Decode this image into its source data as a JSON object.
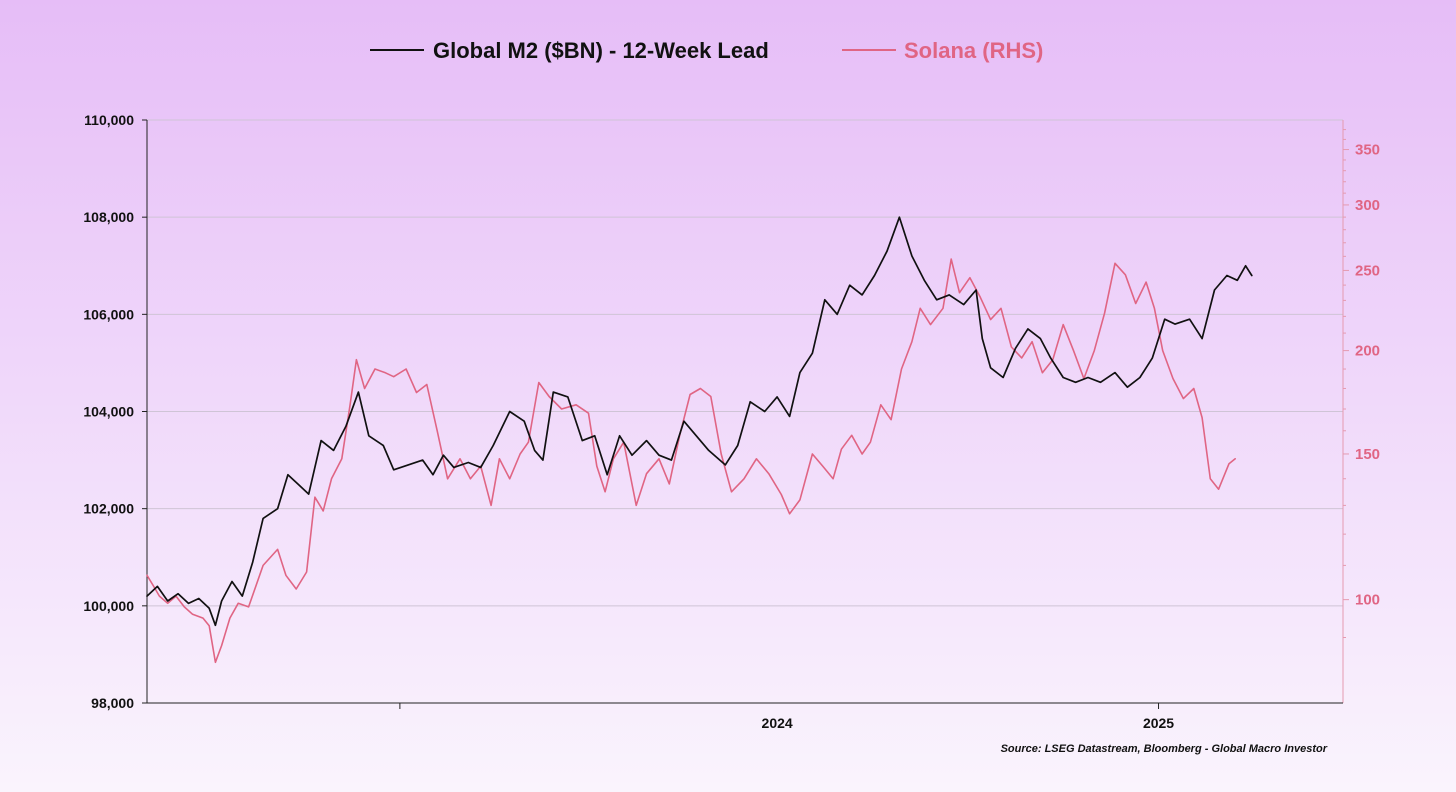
{
  "chart_data": {
    "type": "line",
    "title": "",
    "legend": {
      "placement": "top-center",
      "entries": [
        "Global M2 ($BN) - 12-Week Lead",
        "Solana (RHS)"
      ]
    },
    "source": "Source: LSEG Datastream, Bloomberg - Global Macro Investor",
    "x_axis": {
      "type": "date",
      "range": [
        "2023-09-01",
        "2025-03-31"
      ],
      "tick_labels": [
        "2024",
        "2025"
      ],
      "tick_dates": [
        "2024-01-01",
        "2025-01-01"
      ],
      "label_dates": [
        "2024-07-01",
        "2025-01-01"
      ]
    },
    "y_axis_left": {
      "range": [
        98000,
        110000
      ],
      "ticks": [
        98000,
        100000,
        102000,
        104000,
        106000,
        108000,
        110000
      ],
      "tick_labels": [
        "98,000",
        "100,000",
        "102,000",
        "104,000",
        "106,000",
        "108,000",
        "110,000"
      ],
      "grid": true
    },
    "y_axis_right": {
      "scale": "log",
      "range": [
        75,
        380
      ],
      "ticks": [
        100,
        150,
        200,
        250,
        300,
        350
      ],
      "tick_labels": [
        "100",
        "150",
        "200",
        "250",
        "300",
        "350"
      ]
    },
    "colors": {
      "m2": "#111111",
      "solana": "#e06584",
      "grid": "#cfc4d6"
    },
    "series": [
      {
        "name": "Global M2 ($BN) - 12-Week Lead",
        "axis": "left",
        "color": "#111111",
        "points": [
          [
            "2023-09-01",
            100200
          ],
          [
            "2023-09-06",
            100400
          ],
          [
            "2023-09-11",
            100100
          ],
          [
            "2023-09-16",
            100250
          ],
          [
            "2023-09-21",
            100050
          ],
          [
            "2023-09-26",
            100150
          ],
          [
            "2023-10-01",
            99950
          ],
          [
            "2023-10-04",
            99600
          ],
          [
            "2023-10-07",
            100100
          ],
          [
            "2023-10-12",
            100500
          ],
          [
            "2023-10-17",
            100200
          ],
          [
            "2023-10-22",
            100900
          ],
          [
            "2023-10-27",
            101800
          ],
          [
            "2023-11-03",
            102000
          ],
          [
            "2023-11-08",
            102700
          ],
          [
            "2023-11-13",
            102500
          ],
          [
            "2023-11-18",
            102300
          ],
          [
            "2023-11-24",
            103400
          ],
          [
            "2023-11-30",
            103200
          ],
          [
            "2023-12-06",
            103700
          ],
          [
            "2023-12-12",
            104400
          ],
          [
            "2023-12-17",
            103500
          ],
          [
            "2023-12-24",
            103300
          ],
          [
            "2023-12-29",
            102800
          ],
          [
            "2024-01-05",
            102900
          ],
          [
            "2024-01-12",
            103000
          ],
          [
            "2024-01-17",
            102700
          ],
          [
            "2024-01-22",
            103100
          ],
          [
            "2024-01-27",
            102850
          ],
          [
            "2024-02-03",
            102950
          ],
          [
            "2024-02-09",
            102850
          ],
          [
            "2024-02-15",
            103300
          ],
          [
            "2024-02-23",
            104000
          ],
          [
            "2024-03-01",
            103800
          ],
          [
            "2024-03-06",
            103200
          ],
          [
            "2024-03-10",
            103000
          ],
          [
            "2024-03-15",
            104400
          ],
          [
            "2024-03-22",
            104300
          ],
          [
            "2024-03-29",
            103400
          ],
          [
            "2024-04-04",
            103500
          ],
          [
            "2024-04-10",
            102700
          ],
          [
            "2024-04-16",
            103500
          ],
          [
            "2024-04-22",
            103100
          ],
          [
            "2024-04-29",
            103400
          ],
          [
            "2024-05-05",
            103100
          ],
          [
            "2024-05-11",
            103000
          ],
          [
            "2024-05-17",
            103800
          ],
          [
            "2024-05-23",
            103500
          ],
          [
            "2024-05-29",
            103200
          ],
          [
            "2024-06-06",
            102900
          ],
          [
            "2024-06-12",
            103300
          ],
          [
            "2024-06-18",
            104200
          ],
          [
            "2024-06-25",
            104000
          ],
          [
            "2024-07-01",
            104300
          ],
          [
            "2024-07-07",
            103900
          ],
          [
            "2024-07-12",
            104800
          ],
          [
            "2024-07-18",
            105200
          ],
          [
            "2024-07-24",
            106300
          ],
          [
            "2024-07-30",
            106000
          ],
          [
            "2024-08-05",
            106600
          ],
          [
            "2024-08-11",
            106400
          ],
          [
            "2024-08-17",
            106800
          ],
          [
            "2024-08-23",
            107300
          ],
          [
            "2024-08-29",
            108000
          ],
          [
            "2024-09-04",
            107200
          ],
          [
            "2024-09-10",
            106700
          ],
          [
            "2024-09-16",
            106300
          ],
          [
            "2024-09-22",
            106400
          ],
          [
            "2024-09-29",
            106200
          ],
          [
            "2024-10-05",
            106500
          ],
          [
            "2024-10-08",
            105500
          ],
          [
            "2024-10-12",
            104900
          ],
          [
            "2024-10-18",
            104700
          ],
          [
            "2024-10-24",
            105300
          ],
          [
            "2024-10-30",
            105700
          ],
          [
            "2024-11-05",
            105500
          ],
          [
            "2024-11-10",
            105100
          ],
          [
            "2024-11-16",
            104700
          ],
          [
            "2024-11-22",
            104600
          ],
          [
            "2024-11-28",
            104700
          ],
          [
            "2024-12-04",
            104600
          ],
          [
            "2024-12-11",
            104800
          ],
          [
            "2024-12-17",
            104500
          ],
          [
            "2024-12-23",
            104700
          ],
          [
            "2024-12-29",
            105100
          ],
          [
            "2025-01-04",
            105900
          ],
          [
            "2025-01-09",
            105800
          ],
          [
            "2025-01-16",
            105900
          ],
          [
            "2025-01-22",
            105500
          ],
          [
            "2025-01-28",
            106500
          ],
          [
            "2025-02-03",
            106800
          ],
          [
            "2025-02-08",
            106700
          ],
          [
            "2025-02-12",
            107000
          ],
          [
            "2025-02-15",
            106800
          ]
        ]
      },
      {
        "name": "Solana (RHS)",
        "axis": "right",
        "color": "#e06584",
        "points": [
          [
            "2023-09-01",
            107
          ],
          [
            "2023-09-04",
            104
          ],
          [
            "2023-09-07",
            101
          ],
          [
            "2023-09-11",
            99
          ],
          [
            "2023-09-15",
            101
          ],
          [
            "2023-09-19",
            98
          ],
          [
            "2023-09-23",
            96
          ],
          [
            "2023-09-28",
            95
          ],
          [
            "2023-10-01",
            93
          ],
          [
            "2023-10-04",
            84
          ],
          [
            "2023-10-07",
            88
          ],
          [
            "2023-10-11",
            95
          ],
          [
            "2023-10-15",
            99
          ],
          [
            "2023-10-20",
            98
          ],
          [
            "2023-10-27",
            110
          ],
          [
            "2023-11-03",
            115
          ],
          [
            "2023-11-07",
            107
          ],
          [
            "2023-11-12",
            103
          ],
          [
            "2023-11-17",
            108
          ],
          [
            "2023-11-21",
            133
          ],
          [
            "2023-11-25",
            128
          ],
          [
            "2023-11-29",
            140
          ],
          [
            "2023-12-04",
            148
          ],
          [
            "2023-12-08",
            172
          ],
          [
            "2023-12-11",
            195
          ],
          [
            "2023-12-15",
            180
          ],
          [
            "2023-12-20",
            190
          ],
          [
            "2023-12-25",
            188
          ],
          [
            "2023-12-29",
            186
          ],
          [
            "2024-01-04",
            190
          ],
          [
            "2024-01-09",
            178
          ],
          [
            "2024-01-14",
            182
          ],
          [
            "2024-01-19",
            160
          ],
          [
            "2024-01-24",
            140
          ],
          [
            "2024-01-30",
            148
          ],
          [
            "2024-02-04",
            140
          ],
          [
            "2024-02-09",
            145
          ],
          [
            "2024-02-14",
            130
          ],
          [
            "2024-02-18",
            148
          ],
          [
            "2024-02-23",
            140
          ],
          [
            "2024-02-28",
            150
          ],
          [
            "2024-03-03",
            155
          ],
          [
            "2024-03-08",
            183
          ],
          [
            "2024-03-13",
            176
          ],
          [
            "2024-03-19",
            170
          ],
          [
            "2024-03-26",
            172
          ],
          [
            "2024-04-01",
            168
          ],
          [
            "2024-04-05",
            145
          ],
          [
            "2024-04-09",
            135
          ],
          [
            "2024-04-13",
            148
          ],
          [
            "2024-04-18",
            155
          ],
          [
            "2024-04-24",
            130
          ],
          [
            "2024-04-29",
            142
          ],
          [
            "2024-05-05",
            148
          ],
          [
            "2024-05-10",
            138
          ],
          [
            "2024-05-15",
            158
          ],
          [
            "2024-05-20",
            177
          ],
          [
            "2024-05-25",
            180
          ],
          [
            "2024-05-30",
            176
          ],
          [
            "2024-06-04",
            150
          ],
          [
            "2024-06-09",
            135
          ],
          [
            "2024-06-15",
            140
          ],
          [
            "2024-06-21",
            148
          ],
          [
            "2024-06-27",
            142
          ],
          [
            "2024-07-03",
            134
          ],
          [
            "2024-07-07",
            127
          ],
          [
            "2024-07-12",
            132
          ],
          [
            "2024-07-18",
            150
          ],
          [
            "2024-07-23",
            145
          ],
          [
            "2024-07-28",
            140
          ],
          [
            "2024-08-01",
            152
          ],
          [
            "2024-08-06",
            158
          ],
          [
            "2024-08-11",
            150
          ],
          [
            "2024-08-15",
            155
          ],
          [
            "2024-08-20",
            172
          ],
          [
            "2024-08-25",
            165
          ],
          [
            "2024-08-30",
            190
          ],
          [
            "2024-09-04",
            205
          ],
          [
            "2024-09-08",
            225
          ],
          [
            "2024-09-13",
            215
          ],
          [
            "2024-09-19",
            225
          ],
          [
            "2024-09-23",
            258
          ],
          [
            "2024-09-27",
            235
          ],
          [
            "2024-10-02",
            245
          ],
          [
            "2024-10-07",
            232
          ],
          [
            "2024-10-12",
            218
          ],
          [
            "2024-10-17",
            225
          ],
          [
            "2024-10-22",
            202
          ],
          [
            "2024-10-27",
            196
          ],
          [
            "2024-11-01",
            205
          ],
          [
            "2024-11-06",
            188
          ],
          [
            "2024-11-11",
            195
          ],
          [
            "2024-11-16",
            215
          ],
          [
            "2024-11-21",
            200
          ],
          [
            "2024-11-26",
            185
          ],
          [
            "2024-12-01",
            200
          ],
          [
            "2024-12-06",
            222
          ],
          [
            "2024-12-11",
            255
          ],
          [
            "2024-12-16",
            247
          ],
          [
            "2024-12-21",
            228
          ],
          [
            "2024-12-26",
            242
          ],
          [
            "2024-12-30",
            225
          ],
          [
            "2025-01-03",
            200
          ],
          [
            "2025-01-08",
            185
          ],
          [
            "2025-01-13",
            175
          ],
          [
            "2025-01-18",
            180
          ],
          [
            "2025-01-22",
            166
          ],
          [
            "2025-01-26",
            140
          ],
          [
            "2025-01-30",
            136
          ],
          [
            "2025-02-04",
            146
          ],
          [
            "2025-02-07",
            148
          ]
        ]
      }
    ]
  }
}
